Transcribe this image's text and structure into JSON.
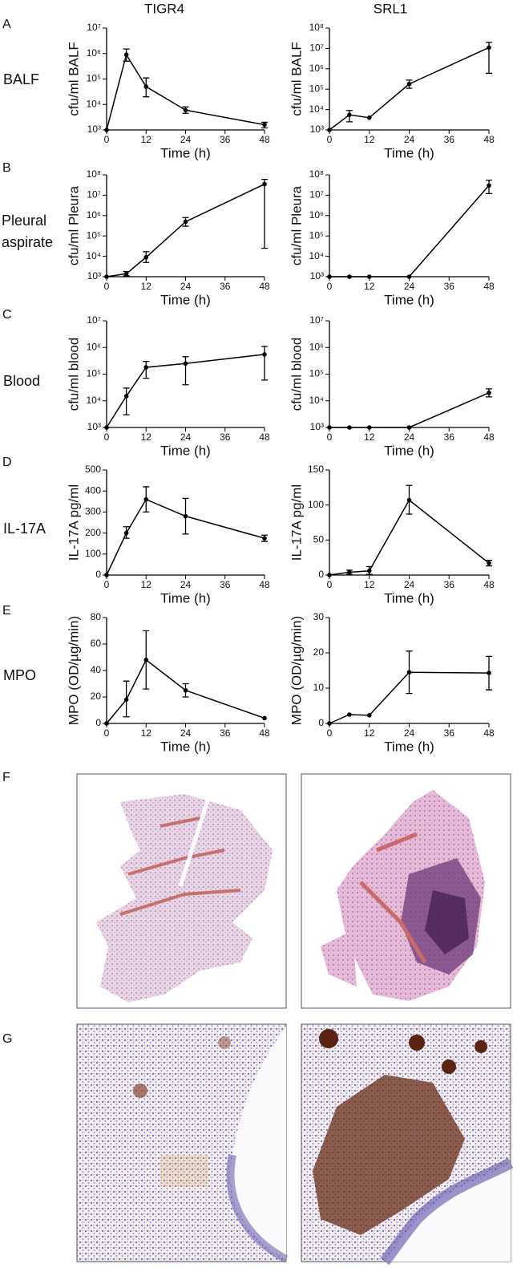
{
  "figure": {
    "columns": [
      "TIGR4",
      "SRL1"
    ],
    "panels": [
      "A",
      "B",
      "C",
      "D",
      "E",
      "F",
      "G"
    ],
    "rows": [
      [
        "BALF"
      ],
      [
        "Pleural",
        "aspirate"
      ],
      [
        "Blood"
      ],
      [
        "IL-17A"
      ],
      [
        "MPO"
      ]
    ]
  },
  "chart_data": [
    {
      "type": "line",
      "xlabel": "Time (h)",
      "ylabel": "cfu/ml BALF",
      "log_scale": true,
      "x": [
        0,
        6,
        12,
        24,
        48
      ],
      "xlim": [
        0,
        48
      ],
      "xticks": [
        0,
        12,
        24,
        36,
        48
      ],
      "ylim": [
        1000,
        10000000
      ],
      "yticks": [
        {
          "value": 1000,
          "label": "10³"
        },
        {
          "value": 10000,
          "label": "10⁴"
        },
        {
          "value": 100000,
          "label": "10⁵"
        },
        {
          "value": 1000000,
          "label": "10⁶"
        },
        {
          "value": 10000000,
          "label": "10⁷"
        }
      ],
      "series": [
        {
          "color": "#000000",
          "values": [
            1000,
            900000,
            50000,
            6000,
            1600
          ],
          "error_low": [
            null,
            500000,
            20000,
            4500,
            1200
          ],
          "error_high": [
            null,
            1500000,
            110000,
            8000,
            2000
          ]
        }
      ]
    },
    {
      "type": "line",
      "xlabel": "Time (h)",
      "ylabel": "cfu/ml BALF",
      "log_scale": true,
      "x": [
        0,
        6,
        12,
        24,
        48
      ],
      "xlim": [
        0,
        48
      ],
      "xticks": [
        0,
        12,
        24,
        36,
        48
      ],
      "ylim": [
        1000,
        100000000
      ],
      "yticks": [
        {
          "value": 1000,
          "label": "10³"
        },
        {
          "value": 10000,
          "label": "10⁴"
        },
        {
          "value": 100000,
          "label": "10⁵"
        },
        {
          "value": 1000000,
          "label": "10⁶"
        },
        {
          "value": 10000000,
          "label": "10⁷"
        },
        {
          "value": 100000000,
          "label": "10⁸"
        }
      ],
      "series": [
        {
          "color": "#000000",
          "values": [
            1000,
            5500,
            4000,
            180000,
            11000000
          ],
          "error_low": [
            null,
            2500,
            null,
            110000,
            600000
          ],
          "error_high": [
            null,
            9000,
            null,
            280000,
            20000000
          ]
        }
      ]
    },
    {
      "type": "line",
      "xlabel": "Time (h)",
      "ylabel": "cfu/ml Pleura",
      "log_scale": true,
      "x": [
        0,
        6,
        12,
        24,
        48
      ],
      "xlim": [
        0,
        48
      ],
      "xticks": [
        0,
        12,
        24,
        36,
        48
      ],
      "ylim": [
        1000,
        100000000
      ],
      "yticks": [
        {
          "value": 1000,
          "label": "10³"
        },
        {
          "value": 10000,
          "label": "10⁴"
        },
        {
          "value": 100000,
          "label": "10⁵"
        },
        {
          "value": 1000000,
          "label": "10⁶"
        },
        {
          "value": 10000000,
          "label": "10⁷"
        },
        {
          "value": 100000000,
          "label": "10⁸"
        }
      ],
      "series": [
        {
          "color": "#000000",
          "values": [
            1000,
            1400,
            9000,
            500000,
            35000000
          ],
          "error_low": [
            null,
            1100,
            5000,
            300000,
            25000
          ],
          "error_high": [
            null,
            1800,
            17000,
            800000,
            60000000
          ]
        }
      ]
    },
    {
      "type": "line",
      "xlabel": "Time (h)",
      "ylabel": "cfu/ml Pleura",
      "log_scale": true,
      "x": [
        0,
        6,
        12,
        24,
        48
      ],
      "xlim": [
        0,
        48
      ],
      "xticks": [
        0,
        12,
        24,
        36,
        48
      ],
      "ylim": [
        1000,
        100000000
      ],
      "yticks": [
        {
          "value": 1000,
          "label": "10³"
        },
        {
          "value": 10000,
          "label": "10⁴"
        },
        {
          "value": 100000,
          "label": "10⁵"
        },
        {
          "value": 1000000,
          "label": "10⁶"
        },
        {
          "value": 10000000,
          "label": "10⁷"
        },
        {
          "value": 100000000,
          "label": "10⁸"
        }
      ],
      "series": [
        {
          "color": "#000000",
          "values": [
            1000,
            1000,
            1000,
            1000,
            30000000
          ],
          "error_low": [
            null,
            null,
            null,
            null,
            12000000
          ],
          "error_high": [
            null,
            null,
            null,
            null,
            55000000
          ]
        }
      ]
    },
    {
      "type": "line",
      "xlabel": "Time (h)",
      "ylabel": "cfu/ml blood",
      "log_scale": true,
      "x": [
        0,
        6,
        12,
        24,
        48
      ],
      "xlim": [
        0,
        48
      ],
      "xticks": [
        0,
        12,
        24,
        36,
        48
      ],
      "ylim": [
        1000,
        10000000
      ],
      "yticks": [
        {
          "value": 1000,
          "label": "10³"
        },
        {
          "value": 10000,
          "label": "10⁴"
        },
        {
          "value": 100000,
          "label": "10⁵"
        },
        {
          "value": 1000000,
          "label": "10⁶"
        },
        {
          "value": 10000000,
          "label": "10⁷"
        }
      ],
      "series": [
        {
          "color": "#000000",
          "values": [
            1000,
            15000,
            180000,
            250000,
            550000
          ],
          "error_low": [
            null,
            3000,
            70000,
            40000,
            60000
          ],
          "error_high": [
            null,
            30000,
            300000,
            450000,
            1100000
          ]
        }
      ]
    },
    {
      "type": "line",
      "xlabel": "Time (h)",
      "ylabel": "cfu/ml blood",
      "log_scale": true,
      "x": [
        0,
        6,
        12,
        24,
        48
      ],
      "xlim": [
        0,
        48
      ],
      "xticks": [
        0,
        12,
        24,
        36,
        48
      ],
      "ylim": [
        1000,
        10000000
      ],
      "yticks": [
        {
          "value": 1000,
          "label": "10³"
        },
        {
          "value": 10000,
          "label": "10⁴"
        },
        {
          "value": 100000,
          "label": "10⁵"
        },
        {
          "value": 1000000,
          "label": "10⁶"
        },
        {
          "value": 10000000,
          "label": "10⁷"
        }
      ],
      "series": [
        {
          "color": "#000000",
          "values": [
            1000,
            1000,
            1000,
            1000,
            20000
          ],
          "error_low": [
            null,
            null,
            null,
            null,
            14000
          ],
          "error_high": [
            null,
            null,
            null,
            null,
            28000
          ]
        }
      ]
    },
    {
      "type": "line",
      "xlabel": "Time (h)",
      "ylabel": "IL-17A pg/ml",
      "log_scale": false,
      "x": [
        0,
        6,
        12,
        24,
        48
      ],
      "xlim": [
        0,
        48
      ],
      "xticks": [
        0,
        12,
        24,
        36,
        48
      ],
      "ylim": [
        0,
        500
      ],
      "yticks": [
        0,
        100,
        200,
        300,
        400,
        500
      ],
      "series": [
        {
          "color": "#000000",
          "values": [
            0,
            200,
            360,
            280,
            175
          ],
          "error_low": [
            null,
            175,
            300,
            195,
            160
          ],
          "error_high": [
            null,
            230,
            420,
            365,
            190
          ]
        }
      ]
    },
    {
      "type": "line",
      "xlabel": "Time (h)",
      "ylabel": "IL-17A pg/ml",
      "log_scale": false,
      "x": [
        0,
        6,
        12,
        24,
        48
      ],
      "xlim": [
        0,
        48
      ],
      "xticks": [
        0,
        12,
        24,
        36,
        48
      ],
      "ylim": [
        0,
        150
      ],
      "yticks": [
        0,
        50,
        100,
        150
      ],
      "series": [
        {
          "color": "#000000",
          "values": [
            0,
            4,
            6,
            107,
            17
          ],
          "error_low": [
            null,
            1,
            1,
            87,
            13
          ],
          "error_high": [
            null,
            7,
            12,
            128,
            21
          ]
        }
      ]
    },
    {
      "type": "line",
      "xlabel": "Time (h)",
      "ylabel": "MPO (OD/µg/min)",
      "log_scale": false,
      "x": [
        0,
        6,
        12,
        24,
        48
      ],
      "xlim": [
        0,
        48
      ],
      "xticks": [
        0,
        12,
        24,
        36,
        48
      ],
      "ylim": [
        0,
        80
      ],
      "yticks": [
        0,
        20,
        40,
        60,
        80
      ],
      "series": [
        {
          "color": "#000000",
          "values": [
            0,
            18,
            48,
            25,
            4
          ],
          "error_low": [
            null,
            5,
            26,
            20,
            null
          ],
          "error_high": [
            null,
            32,
            70,
            30,
            null
          ]
        }
      ]
    },
    {
      "type": "line",
      "xlabel": "Time (h)",
      "ylabel": "MPO (OD/µg/min)",
      "log_scale": false,
      "x": [
        0,
        6,
        12,
        24,
        48
      ],
      "xlim": [
        0,
        48
      ],
      "xticks": [
        0,
        12,
        24,
        36,
        48
      ],
      "ylim": [
        0,
        30
      ],
      "yticks": [
        0,
        10,
        20,
        30
      ],
      "series": [
        {
          "color": "#000000",
          "values": [
            0,
            2.5,
            2.3,
            14.5,
            14.3
          ],
          "error_low": [
            null,
            null,
            null,
            8.5,
            9.5
          ],
          "error_high": [
            null,
            null,
            null,
            20.5,
            19
          ]
        }
      ]
    }
  ]
}
